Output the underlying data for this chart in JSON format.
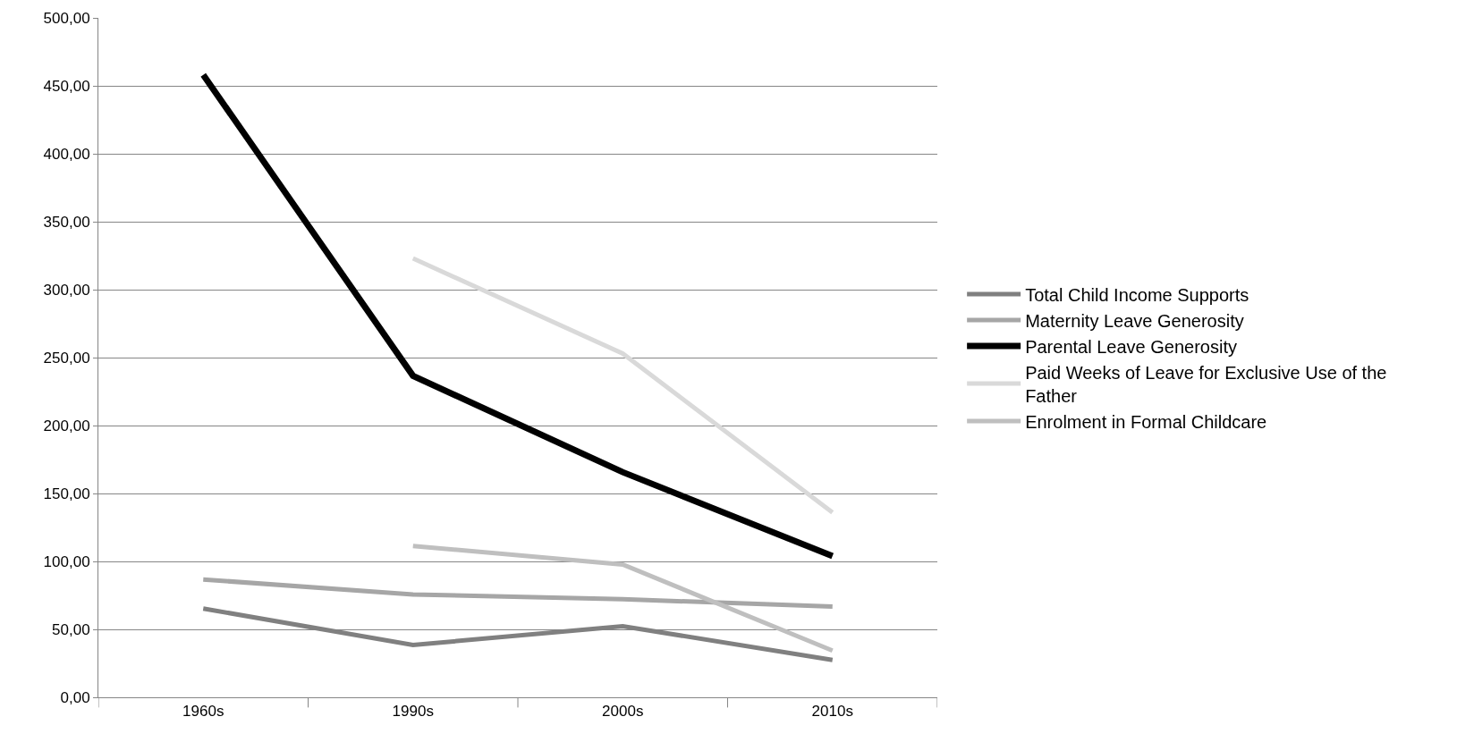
{
  "chart_data": {
    "type": "line",
    "categories": [
      "1960s",
      "1990s",
      "2000s",
      "2010s"
    ],
    "series": [
      {
        "name": "Total Child Income Supports",
        "color": "#808080",
        "values": [
          65.3,
          38.5,
          52.3,
          27.5
        ]
      },
      {
        "name": "Maternity Leave Generosity",
        "color": "#a6a6a6",
        "values": [
          86.7,
          75.7,
          72.2,
          66.7
        ]
      },
      {
        "name": "Parental Leave Generosity",
        "color": "#000000",
        "values": [
          458,
          236.6,
          165.7,
          103.9
        ]
      },
      {
        "name": "Paid Weeks of Leave for Exclusive Use of the Father",
        "color": "#d9d9d9",
        "values": [
          null,
          323,
          253,
          136
        ]
      },
      {
        "name": "Enrolment in Formal Childcare",
        "color": "#bfbfbf",
        "values": [
          null,
          111.4,
          97.7,
          34.4
        ]
      }
    ],
    "ylim": [
      0,
      500
    ],
    "yticks": [
      {
        "value": 0,
        "label": "0,00"
      },
      {
        "value": 50,
        "label": "50,00"
      },
      {
        "value": 100,
        "label": "100,00"
      },
      {
        "value": 150,
        "label": "150,00"
      },
      {
        "value": 200,
        "label": "200,00"
      },
      {
        "value": 250,
        "label": "250,00"
      },
      {
        "value": 300,
        "label": "300,00"
      },
      {
        "value": 350,
        "label": "350,00"
      },
      {
        "value": 400,
        "label": "400,00"
      },
      {
        "value": 450,
        "label": "450,00"
      },
      {
        "value": 500,
        "label": "500,00"
      }
    ],
    "grid": "y",
    "legend": "right",
    "marker": "none",
    "line_style": "solid"
  }
}
